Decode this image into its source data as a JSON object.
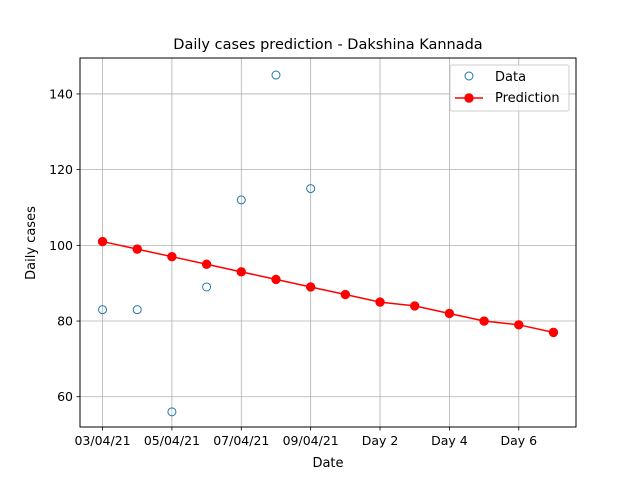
{
  "chart_data": {
    "type": "line",
    "title": "Daily cases prediction - Dakshina Kannada",
    "xlabel": "Date",
    "ylabel": "Daily cases",
    "x_tick_labels": [
      "03/04/21",
      "05/04/21",
      "07/04/21",
      "09/04/21",
      "Day 2",
      "Day 4",
      "Day 6"
    ],
    "x_tick_positions": [
      0,
      2,
      4,
      6,
      8,
      10,
      12
    ],
    "xlim": [
      -0.65,
      13.65
    ],
    "ylim": [
      52,
      149.5
    ],
    "y_ticks": [
      60,
      80,
      100,
      120,
      140
    ],
    "grid": true,
    "legend_position": "top-right",
    "series": [
      {
        "name": "Data",
        "style": "hollow-marker",
        "color": "#1f77b4",
        "x": [
          0,
          1,
          2,
          3,
          4,
          5,
          6
        ],
        "y": [
          83,
          83,
          56,
          89,
          112,
          145,
          115
        ]
      },
      {
        "name": "Prediction",
        "style": "line-marker",
        "color": "#ff0000",
        "x": [
          0,
          1,
          2,
          3,
          4,
          5,
          6,
          7,
          8,
          9,
          10,
          11,
          12,
          13
        ],
        "y": [
          101,
          99,
          97,
          95,
          93,
          91,
          89,
          87,
          85,
          84,
          82,
          80,
          79,
          77
        ]
      }
    ]
  }
}
